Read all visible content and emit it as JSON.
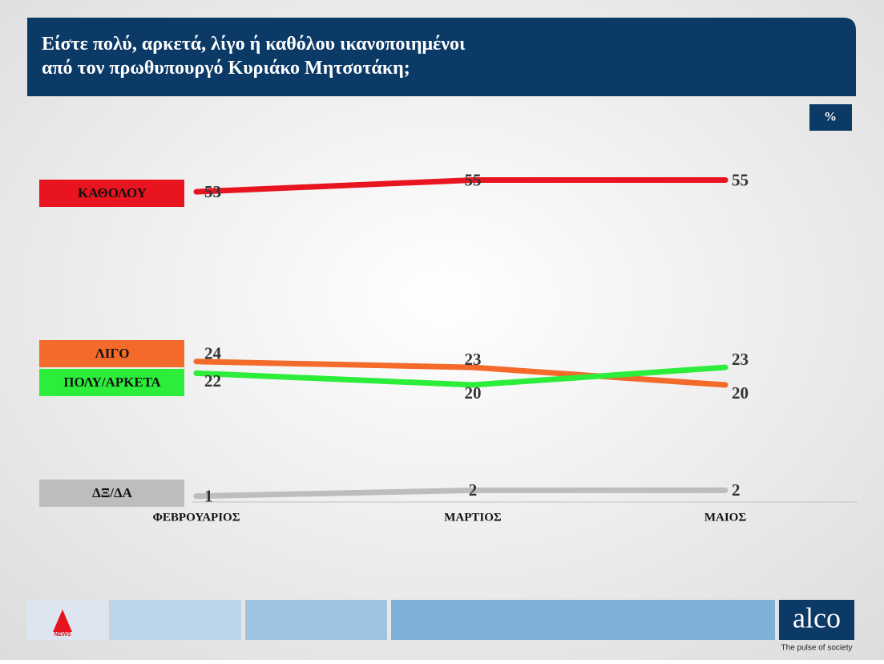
{
  "chart_data": {
    "type": "line",
    "title": "Είστε πολύ, αρκετά, λίγο ή καθόλου ικανοποιημένοι\nαπό τον πρωθυπουργό Κυριάκο Μητσοτάκη;",
    "unit_label": "%",
    "categories": [
      "ΦΕΒΡΟΥΑΡΙΟΣ",
      "ΜΑΡΤΙΟΣ",
      "ΜΑΙΟΣ"
    ],
    "ylim": [
      0,
      60
    ],
    "series": [
      {
        "name": "ΚΑΘΟΛΟΥ",
        "color": "#e8141f",
        "values": [
          53,
          55,
          55
        ]
      },
      {
        "name": "ΛΙΓΟ",
        "color": "#f36a2b",
        "values": [
          24,
          23,
          20
        ]
      },
      {
        "name": "ΠΟΛΥ/ΑΡΚΕΤΑ",
        "color": "#2ded3b",
        "values": [
          22,
          20,
          23
        ]
      },
      {
        "name": "ΔΞ/ΔΑ",
        "color": "#bdbdbd",
        "values": [
          1,
          2,
          2
        ]
      }
    ]
  },
  "footer": {
    "channel": "NEWS",
    "brand": "alco",
    "tagline": "The pulse of society"
  }
}
